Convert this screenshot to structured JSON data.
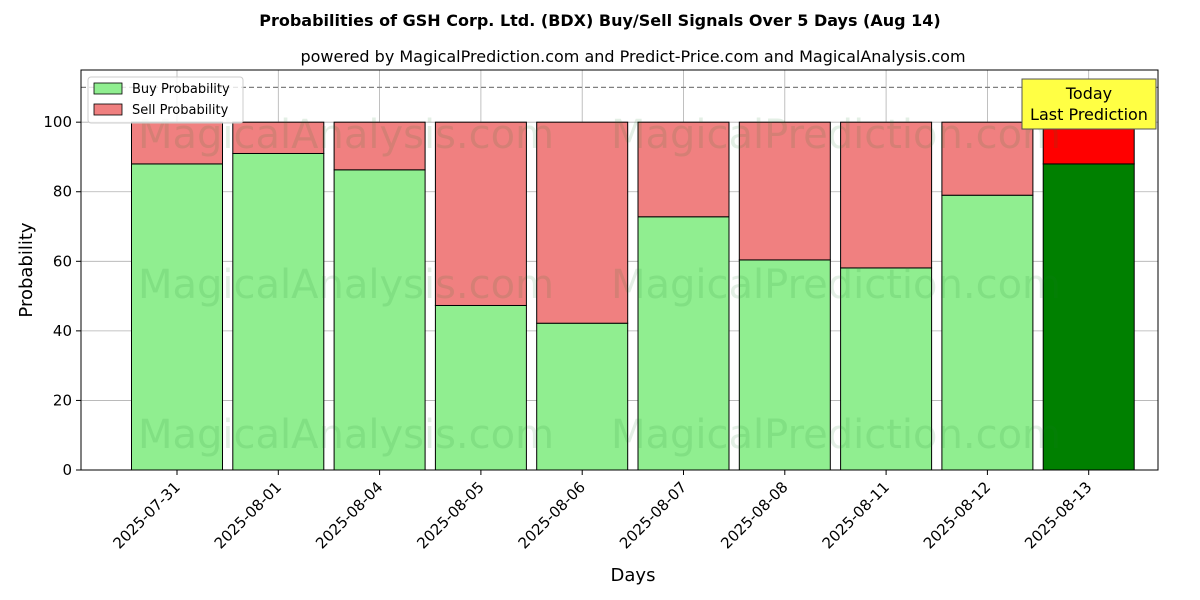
{
  "chart_data": {
    "type": "bar",
    "stacked": true,
    "title": "Probabilities of GSH Corp. Ltd. (BDX) Buy/Sell Signals Over 5 Days (Aug 14)",
    "subtitle": "powered by MagicalPrediction.com and Predict-Price.com and MagicalAnalysis.com",
    "xlabel": "Days",
    "ylabel": "Probability",
    "ylim": [
      0,
      115
    ],
    "yticks": [
      0,
      20,
      40,
      60,
      80,
      100
    ],
    "grid": true,
    "legend_position": "top-left",
    "reference_line": 110,
    "categories": [
      "2025-07-31",
      "2025-08-01",
      "2025-08-04",
      "2025-08-05",
      "2025-08-06",
      "2025-08-07",
      "2025-08-08",
      "2025-08-11",
      "2025-08-12",
      "2025-08-13"
    ],
    "series": [
      {
        "name": "Buy Probability",
        "color": "#90ee90",
        "values": [
          88,
          91,
          86.3,
          47.3,
          42.2,
          72.8,
          60.4,
          58.1,
          79,
          88
        ]
      },
      {
        "name": "Sell Probability",
        "color": "#f08080",
        "values": [
          12,
          9,
          13.7,
          52.7,
          57.8,
          27.2,
          39.6,
          41.9,
          21,
          12
        ]
      }
    ],
    "highlight": {
      "index": 9,
      "buy_color": "#008000",
      "sell_color": "#ff0000"
    },
    "annotation": {
      "lines": [
        "Today",
        "Last Prediction"
      ],
      "bg_color": "#ffff44"
    },
    "watermarks": [
      "MagicalAnalysis.com",
      "MagicalPrediction.com"
    ]
  }
}
